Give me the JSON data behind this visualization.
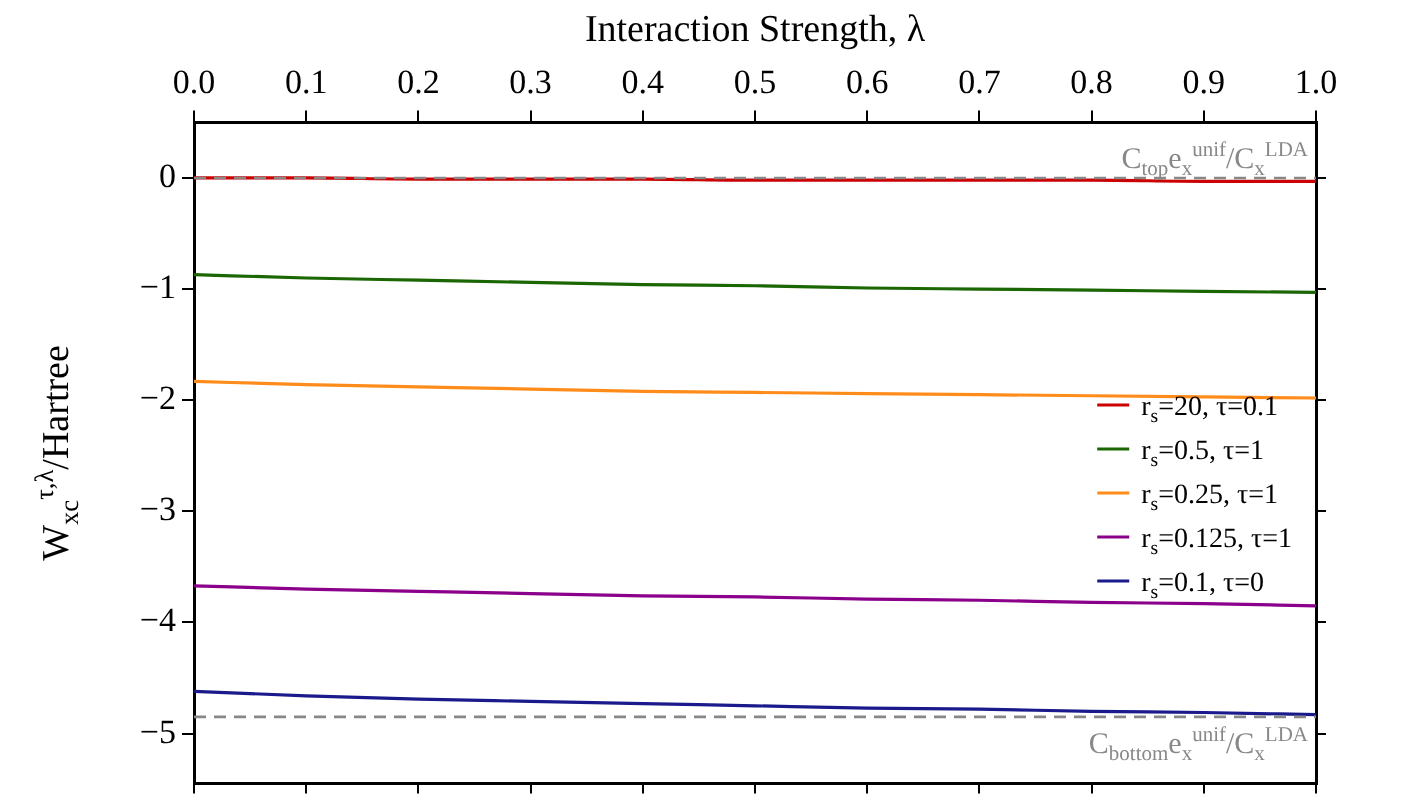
{
  "chart_data": {
    "type": "line",
    "xlabel": "Interaction Strength, λ",
    "ylabel": "W$_{xc}$$^{τ,λ}$/Hartree",
    "x": [
      0,
      0.1,
      0.2,
      0.3,
      0.4,
      0.5,
      0.6,
      0.7,
      0.8,
      0.9,
      1.0
    ],
    "series": [
      {
        "name": "r$_{s}$=20, τ=0.1",
        "color": "#cc0000",
        "values": [
          0,
          0,
          -0.01,
          -0.01,
          -0.01,
          -0.02,
          -0.02,
          -0.02,
          -0.02,
          -0.03,
          -0.03
        ]
      },
      {
        "name": "r$_{s}$=0.5, τ=1",
        "color": "#1a6600",
        "values": [
          -0.87,
          -0.9,
          -0.92,
          -0.94,
          -0.96,
          -0.97,
          -0.99,
          -1.0,
          -1.01,
          -1.02,
          -1.03
        ]
      },
      {
        "name": "r$_{s}$=0.25, τ=1",
        "color": "#ff8c1a",
        "values": [
          -1.83,
          -1.86,
          -1.88,
          -1.9,
          -1.92,
          -1.93,
          -1.94,
          -1.95,
          -1.96,
          -1.97,
          -1.98
        ]
      },
      {
        "name": "r$_{s}$=0.125, τ=1",
        "color": "#8b008b",
        "values": [
          -3.67,
          -3.7,
          -3.72,
          -3.74,
          -3.76,
          -3.77,
          -3.79,
          -3.8,
          -3.82,
          -3.83,
          -3.85
        ]
      },
      {
        "name": "r$_{s}$=0.1, τ=0",
        "color": "#1a1a8c",
        "values": [
          -4.62,
          -4.66,
          -4.69,
          -4.71,
          -4.73,
          -4.75,
          -4.77,
          -4.78,
          -4.8,
          -4.81,
          -4.83
        ]
      }
    ],
    "xlim": [
      0,
      1
    ],
    "xticks": [
      {
        "value": 0,
        "label": "0.0"
      },
      {
        "value": 0.1,
        "label": "0.1"
      },
      {
        "value": 0.2,
        "label": "0.2"
      },
      {
        "value": 0.3,
        "label": "0.3"
      },
      {
        "value": 0.4,
        "label": "0.4"
      },
      {
        "value": 0.5,
        "label": "0.5"
      },
      {
        "value": 0.6,
        "label": "0.6"
      },
      {
        "value": 0.7,
        "label": "0.7"
      },
      {
        "value": 0.8,
        "label": "0.8"
      },
      {
        "value": 0.9,
        "label": "0.9"
      },
      {
        "value": 1.0,
        "label": "1.0"
      }
    ],
    "ylim": [
      -5.45,
      0.5
    ],
    "yticks": [
      -5,
      -4,
      -3,
      -2,
      -1,
      0
    ],
    "ref_lines": [
      {
        "axis": "y",
        "value": 0,
        "label": "C$_{top}$e$_{x}$$^{unif}$/C$_{x}$$^{LDA}$",
        "color": "#888888",
        "line_style": "dashed"
      },
      {
        "axis": "y",
        "value": -4.85,
        "label": "C$_{bottom}$e$_{x}$$^{unif}$/C$_{x}$$^{LDA}$",
        "color": "#888888",
        "line_style": "dashed"
      }
    ],
    "legend": "right",
    "grid": false,
    "marker": "none",
    "line_style": "solid"
  }
}
